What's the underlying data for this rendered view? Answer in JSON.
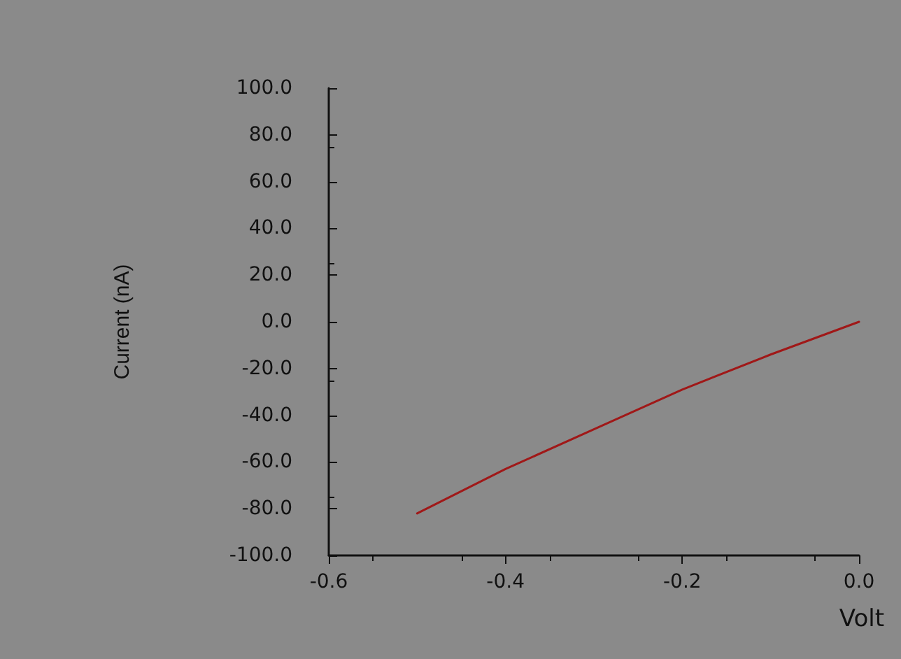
{
  "chart_data": {
    "type": "line",
    "xlabel": "Volt",
    "ylabel": "Current (nA)",
    "x": [
      -0.5,
      -0.4,
      -0.3,
      -0.2,
      -0.1,
      0.0
    ],
    "series": [
      {
        "color": "#a01818",
        "values": [
          -82,
          -63,
          -46,
          -29,
          -14,
          0
        ]
      }
    ],
    "xlim": [
      -0.6,
      0.0
    ],
    "xticks": [
      -0.6,
      -0.4,
      -0.2,
      {
        "value": 0,
        "label": "0.0"
      }
    ],
    "ylim": [
      -100,
      100
    ],
    "yticks": [
      {
        "value": -100,
        "label": "-100.0"
      },
      {
        "value": -80,
        "label": "-80.0"
      },
      {
        "value": -60,
        "label": "-60.0"
      },
      {
        "value": -40,
        "label": "-40.0"
      },
      {
        "value": -20,
        "label": "-20.0"
      },
      {
        "value": 0,
        "label": "0.0"
      },
      {
        "value": 20,
        "label": "20.0"
      },
      {
        "value": 40,
        "label": "40.0"
      },
      {
        "value": 60,
        "label": "60.0"
      },
      {
        "value": 80,
        "label": "80.0"
      },
      {
        "value": 100,
        "label": "100.0"
      }
    ],
    "grid": false,
    "marker": "none",
    "line_style": "solid"
  }
}
